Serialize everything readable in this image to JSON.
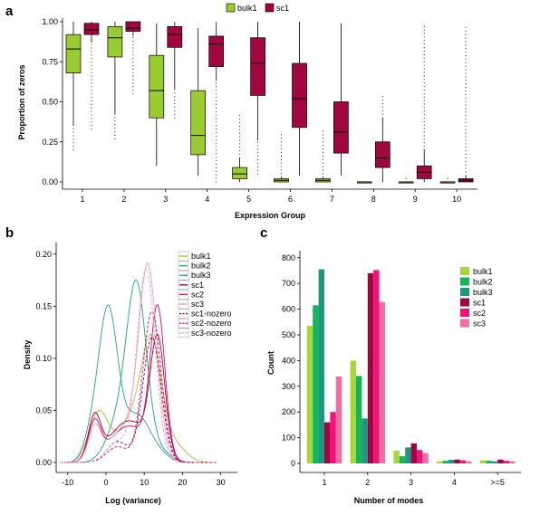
{
  "chart_data": [
    {
      "panel": "a",
      "type": "boxplot",
      "xlabel": "Expression Group",
      "ylabel": "Proportion of zeros",
      "categories": [
        "1",
        "2",
        "3",
        "4",
        "5",
        "6",
        "7",
        "8",
        "9",
        "10"
      ],
      "ylim": [
        0,
        1
      ],
      "yticks": [
        "0.00",
        "0.25",
        "0.50",
        "0.75",
        "1.00"
      ],
      "legend_position": "top-center",
      "series": [
        {
          "name": "bulk1",
          "color": "#99cc33",
          "boxes": [
            {
              "lw": 0.35,
              "q1": 0.68,
              "med": 0.83,
              "q3": 0.92,
              "uw": 1.0
            },
            {
              "lw": 0.42,
              "q1": 0.78,
              "med": 0.9,
              "q3": 0.97,
              "uw": 1.0
            },
            {
              "lw": 0.1,
              "q1": 0.4,
              "med": 0.57,
              "q3": 0.79,
              "uw": 0.99
            },
            {
              "lw": 0.04,
              "q1": 0.17,
              "med": 0.29,
              "q3": 0.57,
              "uw": 0.96
            },
            {
              "lw": 0.0,
              "q1": 0.02,
              "med": 0.05,
              "q3": 0.09,
              "uw": 0.15
            },
            {
              "lw": 0.0,
              "q1": 0.0,
              "med": 0.01,
              "q3": 0.02,
              "uw": 0.03
            },
            {
              "lw": 0.0,
              "q1": 0.0,
              "med": 0.01,
              "q3": 0.02,
              "uw": 0.03
            },
            {
              "lw": 0.0,
              "q1": 0.0,
              "med": 0.0,
              "q3": 0.0,
              "uw": 0.0
            },
            {
              "lw": 0.0,
              "q1": 0.0,
              "med": 0.0,
              "q3": 0.0,
              "uw": 0.0
            },
            {
              "lw": 0.0,
              "q1": 0.0,
              "med": 0.0,
              "q3": 0.0,
              "uw": 0.0
            }
          ]
        },
        {
          "name": "sc1",
          "color": "#a0063f",
          "boxes": [
            {
              "lw": 0.87,
              "q1": 0.92,
              "med": 0.95,
              "q3": 0.99,
              "uw": 1.0
            },
            {
              "lw": 0.91,
              "q1": 0.94,
              "med": 0.96,
              "q3": 1.0,
              "uw": 1.0
            },
            {
              "lw": 0.58,
              "q1": 0.84,
              "med": 0.92,
              "q3": 0.97,
              "uw": 1.0
            },
            {
              "lw": 0.63,
              "q1": 0.72,
              "med": 0.86,
              "q3": 0.91,
              "uw": 1.0
            },
            {
              "lw": 0.26,
              "q1": 0.54,
              "med": 0.74,
              "q3": 0.9,
              "uw": 1.0
            },
            {
              "lw": 0.04,
              "q1": 0.34,
              "med": 0.52,
              "q3": 0.74,
              "uw": 1.0
            },
            {
              "lw": 0.04,
              "q1": 0.18,
              "med": 0.31,
              "q3": 0.5,
              "uw": 0.99
            },
            {
              "lw": 0.0,
              "q1": 0.09,
              "med": 0.15,
              "q3": 0.25,
              "uw": 0.4
            },
            {
              "lw": 0.0,
              "q1": 0.02,
              "med": 0.06,
              "q3": 0.1,
              "uw": 0.2
            },
            {
              "lw": 0.0,
              "q1": 0.0,
              "med": 0.01,
              "q3": 0.02,
              "uw": 0.04
            }
          ]
        }
      ]
    },
    {
      "panel": "b",
      "type": "line",
      "xlabel": "Log (variance)",
      "ylabel": "Density",
      "xlim": [
        -15,
        32
      ],
      "ylim": [
        -0.005,
        0.215
      ],
      "xticks": [
        -10,
        0,
        10,
        20,
        30
      ],
      "yticks": [
        "0.00",
        "0.05",
        "0.10",
        "0.15",
        "0.20"
      ],
      "legend_position": "top-right",
      "series": [
        {
          "name": "bulk1",
          "color": "#c8b23c",
          "dash": "",
          "peaks": [
            [
              -2,
              0.046,
              2.5
            ],
            [
              8.0,
              0.045,
              4.5
            ],
            [
              12,
              0.09,
              2.5
            ],
            [
              18,
              0.015,
              3
            ]
          ]
        },
        {
          "name": "bulk2",
          "color": "#14aa6e",
          "dash": "",
          "peaks": [
            [
              8,
              0.165,
              2.6
            ],
            [
              3,
              0.035,
              3
            ],
            [
              14,
              0.01,
              3
            ]
          ]
        },
        {
          "name": "bulk3",
          "color": "#28a08c",
          "dash": "",
          "peaks": [
            [
              0.5,
              0.145,
              2.5
            ],
            [
              -4,
              0.02,
              2
            ],
            [
              8,
              0.045,
              3.5
            ],
            [
              14,
              0.005,
              3
            ]
          ]
        },
        {
          "name": "sc1",
          "color": "#96003c",
          "dash": "",
          "peaks": [
            [
              -3,
              0.04,
              1.6
            ],
            [
              6,
              0.04,
              5
            ],
            [
              13.5,
              0.11,
              1.9
            ]
          ]
        },
        {
          "name": "sc2",
          "color": "#e6006e",
          "dash": "",
          "peaks": [
            [
              -3,
              0.035,
              1.6
            ],
            [
              6,
              0.035,
              5
            ],
            [
              13.5,
              0.14,
              1.9
            ]
          ]
        },
        {
          "name": "sc3",
          "color": "#f09ac0",
          "dash": "",
          "peaks": [
            [
              -3,
              0.03,
              1.6
            ],
            [
              6,
              0.035,
              5
            ],
            [
              11,
              0.17,
              2.3
            ]
          ]
        },
        {
          "name": "sc1-nozero",
          "color": "#96003c",
          "dash": "3,2",
          "peaks": [
            [
              3,
              0.02,
              2.8
            ],
            [
              12,
              0.12,
              2.4
            ]
          ]
        },
        {
          "name": "sc2-nozero",
          "color": "#e6006e",
          "dash": "3,2",
          "peaks": [
            [
              3,
              0.015,
              2.8
            ],
            [
              12,
              0.145,
              2.4
            ]
          ]
        },
        {
          "name": "sc3-nozero",
          "color": "#f09ac0",
          "dash": "3,2",
          "peaks": [
            [
              3,
              0.02,
              2.8
            ],
            [
              10.5,
              0.185,
              2.4
            ]
          ]
        }
      ]
    },
    {
      "panel": "c",
      "type": "bar",
      "xlabel": "Number of modes",
      "ylabel": "Count",
      "categories": [
        "1",
        "2",
        "3",
        "4",
        ">=5"
      ],
      "ylim": [
        0,
        800
      ],
      "yticks": [
        "0",
        "100",
        "200",
        "300",
        "400",
        "500",
        "600",
        "700",
        "800"
      ],
      "legend_position": "top-right",
      "series": [
        {
          "name": "bulk1",
          "color": "#a6d63c",
          "values": [
            535,
            400,
            50,
            8,
            12
          ]
        },
        {
          "name": "bulk2",
          "color": "#14b45a",
          "values": [
            615,
            340,
            28,
            10,
            10
          ]
        },
        {
          "name": "bulk3",
          "color": "#1e9682",
          "values": [
            755,
            175,
            62,
            14,
            8
          ]
        },
        {
          "name": "sc1",
          "color": "#a0063f",
          "values": [
            160,
            740,
            78,
            15,
            15
          ]
        },
        {
          "name": "sc2",
          "color": "#ee1478",
          "values": [
            200,
            752,
            52,
            12,
            10
          ]
        },
        {
          "name": "sc3",
          "color": "#f26ea0",
          "values": [
            338,
            628,
            40,
            8,
            8
          ]
        }
      ]
    }
  ]
}
